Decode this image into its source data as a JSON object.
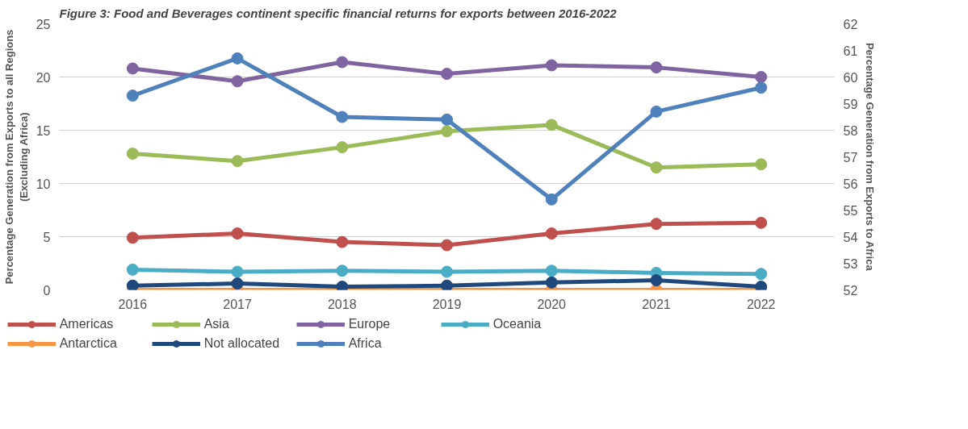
{
  "chart_data": {
    "type": "line",
    "title": "Figure 3: Food and Beverages continent specific financial returns for exports between 2016-2022",
    "categories": [
      "2016",
      "2017",
      "2018",
      "2019",
      "2020",
      "2021",
      "2022"
    ],
    "ylabel": "Percentage Generation from Exports to all Regions (Excluding Africa)",
    "y2label": "Percentage Generation from Exports to Africa",
    "ylim": [
      0,
      25
    ],
    "yticks": [
      0,
      5,
      10,
      15,
      20,
      25
    ],
    "y2lim": [
      52,
      62
    ],
    "y2ticks": [
      52,
      53,
      54,
      55,
      56,
      57,
      58,
      59,
      60,
      61,
      62
    ],
    "grid": "y",
    "legend": "bottom",
    "marker": "circle",
    "line_style": "solid",
    "series": [
      {
        "name": "Americas",
        "color": "#c0504d",
        "values": [
          4.9,
          5.3,
          4.5,
          4.2,
          5.3,
          6.2,
          6.3
        ]
      },
      {
        "name": "Asia",
        "color": "#9bbb59",
        "values": [
          12.8,
          12.1,
          13.4,
          14.9,
          15.5,
          11.5,
          11.8
        ]
      },
      {
        "name": "Europe",
        "color": "#8064a2",
        "values": [
          20.8,
          19.6,
          21.4,
          20.3,
          21.1,
          20.9,
          20.0
        ]
      },
      {
        "name": "Oceania",
        "color": "#4bacc6",
        "values": [
          1.9,
          1.7,
          1.8,
          1.7,
          1.8,
          1.6,
          1.5
        ]
      },
      {
        "name": "Antarctica",
        "color": "#f79646",
        "values": [
          0.0,
          0.0,
          0.0,
          0.0,
          0.0,
          0.0,
          0.0
        ]
      },
      {
        "name": "Not allocated",
        "color": "#1f497d",
        "values": [
          0.4,
          0.6,
          0.3,
          0.4,
          0.7,
          0.9,
          0.3
        ]
      },
      {
        "name": "Africa",
        "color": "#4f81bd",
        "axis": "y2",
        "values": [
          59.3,
          60.7,
          58.5,
          58.4,
          55.4,
          58.7,
          59.6
        ]
      }
    ]
  }
}
